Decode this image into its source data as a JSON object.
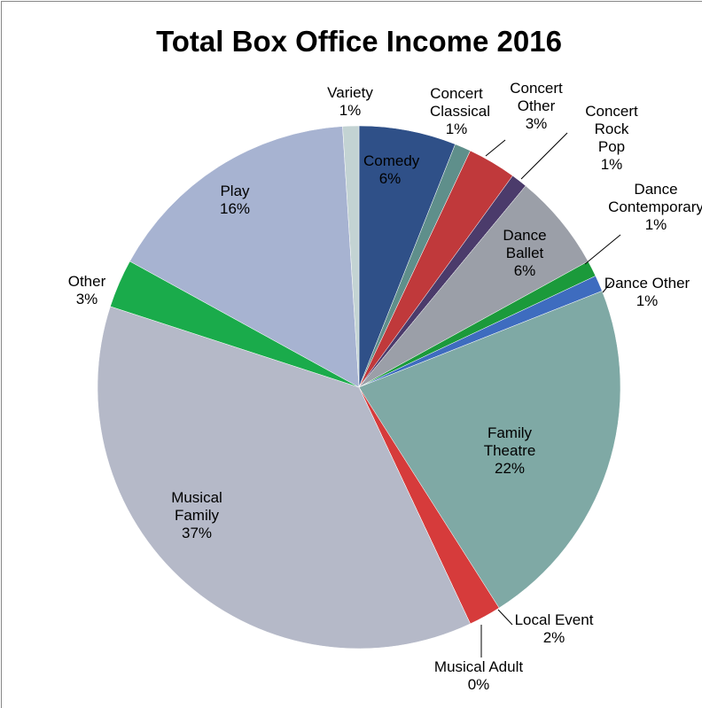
{
  "chart_data": {
    "type": "pie",
    "title": "Total Box Office Income 2016",
    "categories": [
      "Comedy",
      "Concert Classical",
      "Concert Other",
      "Concert Rock Pop",
      "Dance Ballet",
      "Dance Contemporary",
      "Dance Other",
      "Family Theatre",
      "Local Event",
      "Musical Adult",
      "Musical Family",
      "Other",
      "Play",
      "Variety"
    ],
    "values": [
      6,
      1,
      3,
      1,
      6,
      1,
      1,
      22,
      2,
      0,
      37,
      3,
      16,
      1
    ],
    "value_labels": [
      "6%",
      "1%",
      "3%",
      "1%",
      "6%",
      "1%",
      "1%",
      "22%",
      "2%",
      "0%",
      "37%",
      "3%",
      "16%",
      "1%"
    ],
    "colors": [
      "#2f5088",
      "#5f8f8b",
      "#c0393b",
      "#4b3b6b",
      "#9b9fa8",
      "#1b9a3b",
      "#3e6cbf",
      "#7fa9a5",
      "#d63b3b",
      "#2f5088",
      "#b5b9c8",
      "#1aab4b",
      "#a7b3d1",
      "#c3d3d3"
    ]
  }
}
